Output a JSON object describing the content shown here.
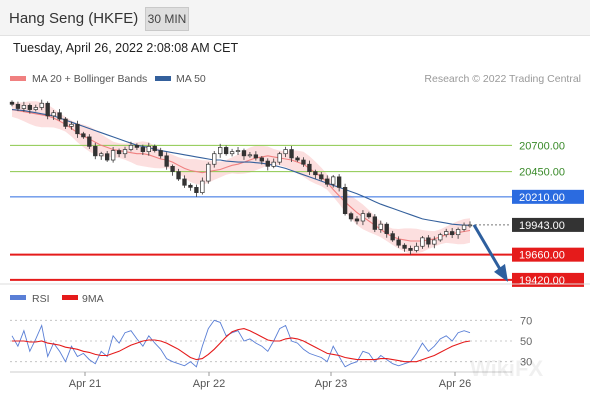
{
  "header": {
    "title": "Hang Seng (HKFE)",
    "timeframe": "30 MIN",
    "datetime": "Tuesday, April 26, 2022 2:08:08 AM CET"
  },
  "legend": {
    "ma20_label": "MA 20 + Bollinger Bands",
    "ma50_label": "MA 50",
    "ma20_color": "#f08080",
    "ma50_color": "#34609c",
    "credit": "Research © 2022 Trading Central"
  },
  "levels": [
    {
      "value": 20700,
      "label": "20700.00",
      "kind": "target",
      "color": "#8cc84b"
    },
    {
      "value": 20450,
      "label": "20450.00",
      "kind": "target",
      "color": "#8cc84b"
    },
    {
      "value": 20210,
      "label": "20210.00",
      "kind": "pivot",
      "color": "#2b6be0"
    },
    {
      "value": 19943,
      "label": "19943.00",
      "kind": "last",
      "color": "#333333"
    },
    {
      "value": 19660,
      "label": "19660.00",
      "kind": "support",
      "color": "#e51b1b"
    },
    {
      "value": 19420,
      "label": "19420.00",
      "kind": "support",
      "color": "#e51b1b"
    }
  ],
  "rsi_panel": {
    "rsi_label": "RSI",
    "ma_label": "9MA",
    "rsi_color": "#5a7fd6",
    "ma_color": "#e51b1b",
    "ticks": [
      "70",
      "50",
      "30"
    ]
  },
  "watermark": "WikiFX",
  "chart_data": {
    "type": "candlestick",
    "x_labels": [
      "Apr 21",
      "Apr 22",
      "Apr 23",
      "Apr 26"
    ],
    "ylim": [
      19400,
      21150
    ],
    "trend": "bearish",
    "close_series": [
      21090,
      21050,
      21080,
      21040,
      21060,
      21100,
      20980,
      21010,
      20950,
      20880,
      20900,
      20810,
      20780,
      20690,
      20600,
      20620,
      20560,
      20650,
      20620,
      20660,
      20700,
      20680,
      20640,
      20690,
      20650,
      20600,
      20500,
      20450,
      20380,
      20320,
      20300,
      20250,
      20360,
      20520,
      20620,
      20680,
      20620,
      20640,
      20650,
      20600,
      20610,
      20580,
      20550,
      20500,
      20540,
      20620,
      20660,
      20580,
      20560,
      20520,
      20450,
      20420,
      20380,
      20330,
      20400,
      20300,
      20050,
      20000,
      19980,
      20050,
      20020,
      19900,
      19950,
      19860,
      19800,
      19750,
      19720,
      19700,
      19740,
      19820,
      19760,
      19800,
      19850,
      19880,
      19850,
      19900,
      19940,
      19943
    ],
    "ma20_series": [
      21040,
      21030,
      21020,
      21010,
      21000,
      20990,
      20980,
      20960,
      20930,
      20900,
      20860,
      20820,
      20790,
      20760,
      20730,
      20700,
      20680,
      20660,
      20650,
      20640,
      20630,
      20620,
      20620,
      20610,
      20590,
      20570,
      20560,
      20540,
      20510,
      20480,
      20460,
      20450,
      20440,
      20450,
      20460,
      20470,
      20490,
      20510,
      20520,
      20540,
      20560,
      20580,
      20590,
      20600,
      20590,
      20580,
      20570,
      20560,
      20540,
      20520,
      20480,
      20440,
      20400,
      20350,
      20280,
      20220,
      20160,
      20110,
      20060,
      20020,
      19980,
      19940,
      19900,
      19860,
      19830,
      19810,
      19800,
      19790,
      19790,
      19790,
      19800,
      19810,
      19830,
      19850,
      19860,
      19870,
      19880,
      19890
    ],
    "ma50_series": [
      21040,
      21035,
      21030,
      21020,
      21010,
      21000,
      20990,
      20980,
      20960,
      20940,
      20920,
      20900,
      20880,
      20860,
      20840,
      20820,
      20800,
      20780,
      20760,
      20740,
      20720,
      20700,
      20690,
      20680,
      20660,
      20650,
      20640,
      20630,
      20620,
      20610,
      20600,
      20590,
      20580,
      20570,
      20560,
      20560,
      20550,
      20545,
      20540,
      20540,
      20540,
      20535,
      20530,
      20520,
      20510,
      20495,
      20480,
      20460,
      20440,
      20420,
      20400,
      20380,
      20360,
      20340,
      20320,
      20300,
      20280,
      20260,
      20240,
      20215,
      20190,
      20165,
      20140,
      20120,
      20100,
      20080,
      20060,
      20040,
      20020,
      20000,
      19990,
      19980,
      19970,
      19960,
      19950,
      19945,
      19940,
      19940
    ],
    "rsi_ylim": [
      20,
      80
    ],
    "rsi_series": [
      55,
      45,
      60,
      40,
      52,
      65,
      35,
      48,
      40,
      30,
      45,
      35,
      38,
      32,
      28,
      40,
      35,
      55,
      48,
      58,
      60,
      52,
      45,
      55,
      48,
      42,
      33,
      30,
      28,
      26,
      30,
      25,
      45,
      62,
      70,
      68,
      55,
      58,
      60,
      50,
      52,
      48,
      45,
      40,
      50,
      62,
      65,
      50,
      48,
      42,
      38,
      36,
      34,
      30,
      45,
      35,
      25,
      28,
      30,
      40,
      38,
      30,
      36,
      32,
      28,
      26,
      28,
      30,
      38,
      48,
      40,
      45,
      52,
      55,
      50,
      58,
      60,
      58
    ],
    "rsi_ma_series": [
      50,
      50,
      50,
      49,
      49,
      50,
      48,
      47,
      46,
      44,
      43,
      42,
      40,
      39,
      37,
      36,
      36,
      38,
      40,
      43,
      46,
      48,
      50,
      51,
      51,
      50,
      48,
      45,
      42,
      38,
      34,
      32,
      33,
      37,
      42,
      48,
      54,
      59,
      61,
      62,
      60,
      57,
      54,
      51,
      50,
      50,
      52,
      53,
      52,
      50,
      47,
      44,
      41,
      38,
      37,
      36,
      34,
      33,
      32,
      32,
      32,
      32,
      33,
      33,
      32,
      31,
      30,
      30,
      30,
      32,
      34,
      36,
      39,
      42,
      45,
      47,
      49,
      50
    ]
  }
}
